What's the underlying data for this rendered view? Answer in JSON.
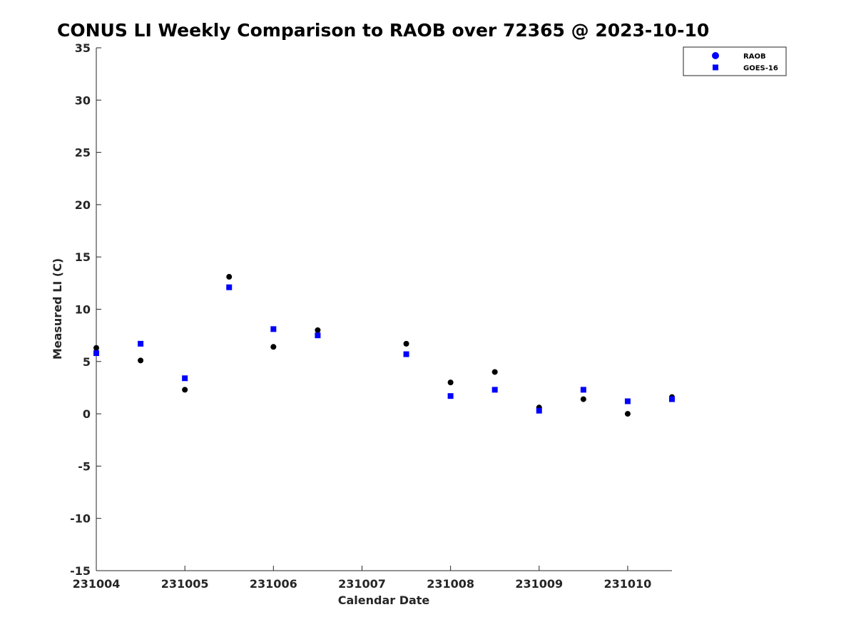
{
  "chart_data": {
    "type": "scatter",
    "title": "CONUS LI Weekly Comparison to RAOB over 72365 @ 2023-10-10",
    "xlabel": "Calendar Date",
    "ylabel": "Measured LI (C)",
    "x_ticks": [
      {
        "value": 0,
        "label": "231004"
      },
      {
        "value": 1,
        "label": "231005"
      },
      {
        "value": 2,
        "label": "231006"
      },
      {
        "value": 3,
        "label": "231007"
      },
      {
        "value": 4,
        "label": "231008"
      },
      {
        "value": 5,
        "label": "231009"
      },
      {
        "value": 6,
        "label": "231010"
      }
    ],
    "xlim": [
      0,
      6.5
    ],
    "ylim": [
      -15,
      35
    ],
    "y_ticks": [
      -15,
      -10,
      -5,
      0,
      5,
      10,
      15,
      20,
      25,
      30,
      35
    ],
    "grid": false,
    "legend_position": "top-right",
    "series": [
      {
        "name": "RAOB",
        "marker": "circle",
        "color": "#000000",
        "legend_color": "#0000ff",
        "x": [
          0,
          0.5,
          1,
          1.5,
          2,
          2.5,
          3.5,
          4,
          4.5,
          5,
          5.5,
          6,
          6.5
        ],
        "y": [
          6.3,
          5.1,
          2.3,
          13.1,
          6.4,
          8.0,
          6.7,
          3.0,
          4.0,
          0.6,
          1.4,
          0.0,
          1.6
        ]
      },
      {
        "name": "GOES-16",
        "marker": "square",
        "color": "#0000ff",
        "legend_color": "#0000ff",
        "x": [
          0,
          0.5,
          1,
          1.5,
          2,
          2.5,
          3.5,
          4,
          4.5,
          5,
          5.5,
          6,
          6.5
        ],
        "y": [
          5.8,
          6.7,
          3.4,
          12.1,
          8.1,
          7.5,
          5.7,
          1.7,
          2.3,
          0.3,
          2.3,
          1.2,
          1.4
        ]
      }
    ]
  }
}
